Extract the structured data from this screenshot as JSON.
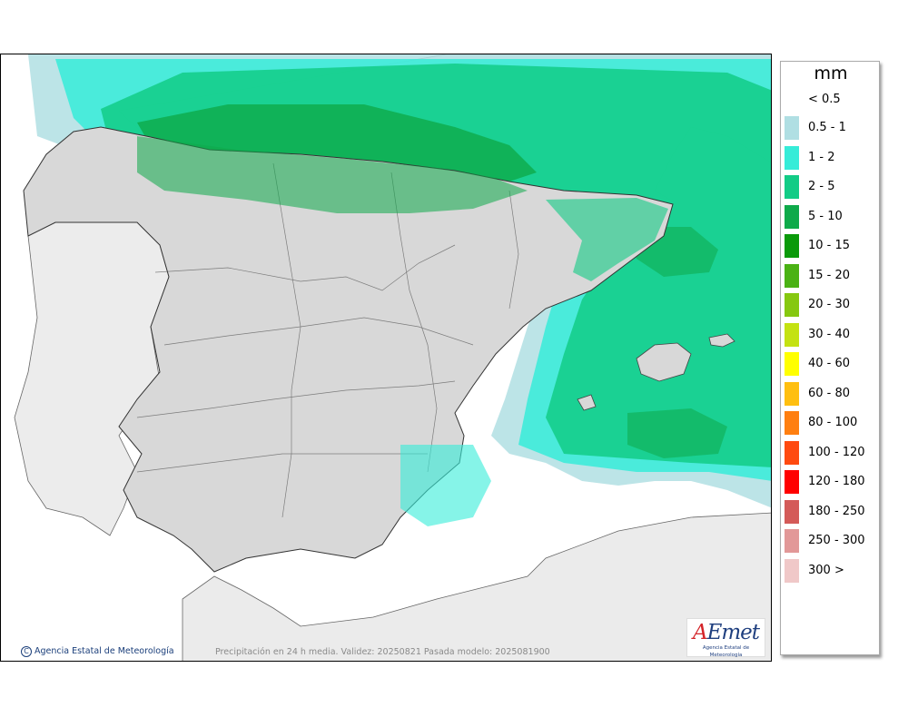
{
  "map": {
    "caption": "Precipitación en 24 h media. Validez: 20250821 Pasada modelo: 2025081900",
    "credit": "Agencia Estatal de Meteorología",
    "logo": {
      "wordmark": "AEmet",
      "subtitle": "Agencia Estatal de Meteorología"
    }
  },
  "legend": {
    "unit": "mm",
    "first_label": "< 0.5",
    "classes": [
      {
        "label": "0.5 - 1",
        "color": "#b0dfe3"
      },
      {
        "label": "1 - 2",
        "color": "#36ecd8"
      },
      {
        "label": "2 - 5",
        "color": "#12cc86"
      },
      {
        "label": "5 - 10",
        "color": "#0eaa4a"
      },
      {
        "label": "10 - 15",
        "color": "#0a9a0a"
      },
      {
        "label": "15 - 20",
        "color": "#4ab214"
      },
      {
        "label": "20 - 30",
        "color": "#86c810"
      },
      {
        "label": "30 - 40",
        "color": "#c4e212"
      },
      {
        "label": "40 - 60",
        "color": "#ffff00"
      },
      {
        "label": "60 - 80",
        "color": "#ffbf10"
      },
      {
        "label": "80 - 100",
        "color": "#ff7f10"
      },
      {
        "label": "100 - 120",
        "color": "#ff4a10"
      },
      {
        "label": "120 - 180",
        "color": "#ff0000"
      },
      {
        "label": "180 - 250",
        "color": "#d45a58"
      },
      {
        "label": "250 - 300",
        "color": "#e29898"
      },
      {
        "label": "300 >",
        "color": "#f0c8c8"
      }
    ]
  }
}
